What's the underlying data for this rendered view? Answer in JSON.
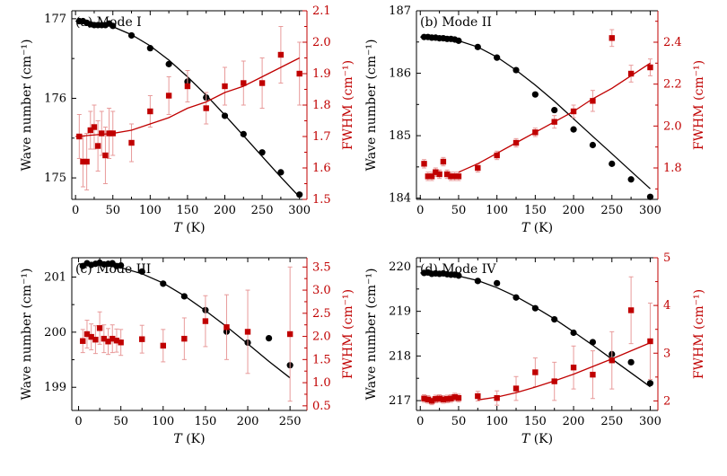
{
  "chart_data": [
    {
      "type": "scatter",
      "title": "(a) Mode I",
      "xlabel_italic": "T",
      "xlabel_unit": " (K)",
      "ylabel": "Wave number (cm⁻¹)",
      "y2label": "FWHM (cm⁻¹)",
      "xlim": [
        -5,
        310
      ],
      "ylim": [
        174.73,
        177.1
      ],
      "y2lim": [
        1.5,
        2.1
      ],
      "xticks": [
        0,
        50,
        100,
        150,
        200,
        250,
        300
      ],
      "yticks": [
        175,
        176,
        177
      ],
      "y2ticks": [
        1.5,
        1.6,
        1.7,
        1.8,
        1.9,
        2.0,
        2.1
      ],
      "series": [
        {
          "name": "Wave number",
          "axis": "left",
          "marker": "circle",
          "color": "#000000",
          "x": [
            5,
            10,
            15,
            20,
            25,
            30,
            35,
            40,
            45,
            50,
            75,
            100,
            125,
            150,
            175,
            200,
            225,
            250,
            275,
            300
          ],
          "y": [
            176.97,
            176.97,
            176.95,
            176.93,
            176.92,
            176.92,
            176.92,
            176.92,
            176.94,
            176.91,
            176.79,
            176.63,
            176.43,
            176.21,
            176.01,
            175.78,
            175.55,
            175.32,
            175.07,
            174.79
          ]
        },
        {
          "name": "Wave number fit",
          "axis": "left",
          "style": "line",
          "color": "#000000",
          "x": [
            0,
            25,
            50,
            75,
            100,
            125,
            150,
            175,
            200,
            225,
            250,
            275,
            300
          ],
          "y": [
            176.97,
            176.95,
            176.9,
            176.8,
            176.66,
            176.48,
            176.27,
            176.04,
            175.79,
            175.53,
            175.27,
            175.01,
            174.76
          ]
        },
        {
          "name": "FWHM",
          "axis": "right",
          "marker": "square",
          "color": "#c00000",
          "x": [
            5,
            10,
            15,
            20,
            25,
            30,
            35,
            40,
            45,
            50,
            75,
            100,
            125,
            150,
            175,
            200,
            225,
            250,
            275,
            300
          ],
          "y": [
            1.7,
            1.62,
            1.62,
            1.72,
            1.73,
            1.67,
            1.71,
            1.64,
            1.71,
            1.71,
            1.68,
            1.78,
            1.83,
            1.86,
            1.79,
            1.86,
            1.87,
            1.87,
            1.96,
            1.9
          ],
          "err": [
            0.07,
            0.08,
            0.09,
            0.06,
            0.07,
            0.08,
            0.07,
            0.09,
            0.08,
            0.07,
            0.06,
            0.05,
            0.06,
            0.05,
            0.05,
            0.06,
            0.07,
            0.08,
            0.09,
            0.1
          ]
        },
        {
          "name": "FWHM fit",
          "axis": "right",
          "style": "line",
          "color": "#c00000",
          "x": [
            0,
            50,
            75,
            100,
            125,
            150,
            175,
            200,
            225,
            250,
            275,
            300
          ],
          "y": [
            1.7,
            1.71,
            1.72,
            1.74,
            1.76,
            1.79,
            1.81,
            1.84,
            1.86,
            1.89,
            1.92,
            1.95
          ]
        }
      ]
    },
    {
      "type": "scatter",
      "title": "(b) Mode II",
      "xlabel_italic": "T",
      "xlabel_unit": " (K)",
      "ylabel": "Wave number (cm⁻¹)",
      "y2label": "FWHM (cm⁻¹)",
      "xlim": [
        -5,
        310
      ],
      "ylim": [
        183.98,
        187.0
      ],
      "y2lim": [
        1.65,
        2.55
      ],
      "xticks": [
        0,
        50,
        100,
        150,
        200,
        250,
        300
      ],
      "yticks": [
        184,
        185,
        186,
        187
      ],
      "y2ticks": [
        1.8,
        2.0,
        2.2,
        2.4
      ],
      "series": [
        {
          "name": "Wave number",
          "axis": "left",
          "marker": "circle",
          "color": "#000000",
          "x": [
            5,
            10,
            15,
            20,
            25,
            30,
            35,
            40,
            45,
            50,
            75,
            100,
            125,
            150,
            175,
            200,
            225,
            250,
            275,
            300
          ],
          "y": [
            186.58,
            186.58,
            186.57,
            186.57,
            186.56,
            186.56,
            186.55,
            186.55,
            186.54,
            186.52,
            186.42,
            186.25,
            186.05,
            185.66,
            185.41,
            185.1,
            184.85,
            184.55,
            184.3,
            184.02
          ]
        },
        {
          "name": "Wave number fit",
          "axis": "left",
          "style": "line",
          "color": "#000000",
          "x": [
            0,
            25,
            50,
            75,
            100,
            125,
            150,
            175,
            200,
            225,
            250,
            275,
            300
          ],
          "y": [
            186.58,
            186.57,
            186.52,
            186.42,
            186.26,
            186.05,
            185.81,
            185.55,
            185.27,
            184.99,
            184.71,
            184.43,
            184.15
          ]
        },
        {
          "name": "FWHM",
          "axis": "right",
          "marker": "square",
          "color": "#c00000",
          "x": [
            5,
            10,
            15,
            20,
            25,
            30,
            35,
            40,
            45,
            50,
            75,
            100,
            125,
            150,
            175,
            200,
            225,
            250,
            275,
            300
          ],
          "y": [
            1.82,
            1.76,
            1.76,
            1.78,
            1.77,
            1.83,
            1.77,
            1.76,
            1.76,
            1.76,
            1.8,
            1.86,
            1.92,
            1.97,
            2.02,
            2.07,
            2.12,
            2.42,
            2.25,
            2.28
          ],
          "err": [
            0.02,
            0.02,
            0.02,
            0.02,
            0.02,
            0.02,
            0.02,
            0.02,
            0.02,
            0.02,
            0.02,
            0.02,
            0.02,
            0.02,
            0.03,
            0.03,
            0.05,
            0.04,
            0.04,
            0.04
          ]
        },
        {
          "name": "FWHM fit",
          "axis": "right",
          "style": "line",
          "color": "#c00000",
          "x": [
            50,
            75,
            100,
            125,
            150,
            175,
            200,
            225,
            250,
            275,
            300
          ],
          "y": [
            1.78,
            1.82,
            1.87,
            1.92,
            1.97,
            2.02,
            2.07,
            2.13,
            2.18,
            2.24,
            2.3
          ]
        }
      ]
    },
    {
      "type": "scatter",
      "title": "(c) Mode III",
      "xlabel_italic": "T",
      "xlabel_unit": " (K)",
      "ylabel": "Wave number (cm⁻¹)",
      "y2label": "FWHM (cm⁻¹)",
      "xlim": [
        -8,
        270
      ],
      "ylim": [
        198.58,
        201.35
      ],
      "y2lim": [
        0.4,
        3.7
      ],
      "xticks": [
        0,
        50,
        100,
        150,
        200,
        250
      ],
      "yticks": [
        199,
        200,
        201
      ],
      "y2ticks": [
        0.5,
        1.0,
        1.5,
        2.0,
        2.5,
        3.0,
        3.5
      ],
      "series": [
        {
          "name": "Wave number",
          "axis": "left",
          "marker": "circle",
          "color": "#000000",
          "x": [
            5,
            10,
            15,
            20,
            25,
            30,
            35,
            40,
            45,
            50,
            75,
            100,
            125,
            150,
            175,
            200,
            225,
            250
          ],
          "y": [
            201.2,
            201.25,
            201.22,
            201.24,
            201.26,
            201.23,
            201.24,
            201.25,
            201.2,
            201.21,
            201.1,
            200.88,
            200.65,
            200.4,
            200.01,
            199.81,
            199.89,
            199.4
          ]
        },
        {
          "name": "Wave number fit",
          "axis": "left",
          "style": "line",
          "color": "#000000",
          "x": [
            0,
            25,
            50,
            75,
            100,
            125,
            150,
            175,
            200,
            225,
            250
          ],
          "y": [
            201.24,
            201.22,
            201.17,
            201.06,
            200.89,
            200.66,
            200.39,
            200.1,
            199.79,
            199.47,
            199.17
          ]
        },
        {
          "name": "FWHM",
          "axis": "right",
          "marker": "square",
          "color": "#c00000",
          "x": [
            5,
            10,
            15,
            20,
            25,
            30,
            35,
            40,
            45,
            50,
            75,
            100,
            125,
            150,
            175,
            200,
            250
          ],
          "y": [
            1.9,
            2.05,
            1.99,
            1.93,
            2.18,
            1.95,
            1.89,
            1.95,
            1.91,
            1.87,
            1.94,
            1.8,
            1.95,
            2.33,
            2.2,
            2.1,
            2.05
          ],
          "err": [
            0.25,
            0.3,
            0.28,
            0.3,
            0.35,
            0.3,
            0.28,
            0.3,
            0.25,
            0.28,
            0.3,
            0.35,
            0.45,
            0.55,
            0.7,
            0.9,
            1.45
          ]
        }
      ]
    },
    {
      "type": "scatter",
      "title": "(d) Mode IV",
      "xlabel_italic": "T",
      "xlabel_unit": " (K)",
      "ylabel": "Wave number (cm⁻¹)",
      "y2label": "FWHM (cm⁻¹)",
      "xlim": [
        -5,
        310
      ],
      "ylim": [
        216.78,
        220.2
      ],
      "y2lim": [
        1.8,
        5.0
      ],
      "xticks": [
        0,
        50,
        100,
        150,
        200,
        250,
        300
      ],
      "yticks": [
        217,
        218,
        219,
        220
      ],
      "y2ticks": [
        2,
        3,
        4,
        5
      ],
      "series": [
        {
          "name": "Wave number",
          "axis": "left",
          "marker": "circle",
          "color": "#000000",
          "x": [
            5,
            10,
            15,
            20,
            25,
            30,
            35,
            40,
            45,
            50,
            75,
            100,
            125,
            150,
            175,
            200,
            225,
            250,
            275,
            300
          ],
          "y": [
            219.86,
            219.87,
            219.84,
            219.85,
            219.84,
            219.85,
            219.83,
            219.82,
            219.82,
            219.8,
            219.68,
            219.63,
            219.31,
            219.07,
            218.82,
            218.52,
            218.31,
            218.04,
            217.86,
            217.39
          ]
        },
        {
          "name": "Wave number fit",
          "axis": "left",
          "style": "line",
          "color": "#000000",
          "x": [
            0,
            25,
            50,
            75,
            100,
            125,
            150,
            175,
            200,
            225,
            250,
            275,
            300
          ],
          "y": [
            219.86,
            219.84,
            219.79,
            219.69,
            219.53,
            219.33,
            219.09,
            218.83,
            218.54,
            218.24,
            217.93,
            217.62,
            217.31
          ]
        },
        {
          "name": "FWHM",
          "axis": "right",
          "marker": "square",
          "color": "#c00000",
          "x": [
            5,
            10,
            15,
            20,
            25,
            30,
            35,
            40,
            45,
            50,
            75,
            100,
            125,
            150,
            175,
            200,
            225,
            250,
            275,
            300
          ],
          "y": [
            2.05,
            2.03,
            2.0,
            2.04,
            2.05,
            2.03,
            2.04,
            2.05,
            2.08,
            2.06,
            2.1,
            2.06,
            2.26,
            2.6,
            2.41,
            2.7,
            2.55,
            2.85,
            3.9,
            3.25
          ],
          "err": [
            0.08,
            0.08,
            0.08,
            0.08,
            0.08,
            0.08,
            0.08,
            0.08,
            0.08,
            0.08,
            0.1,
            0.15,
            0.25,
            0.3,
            0.4,
            0.45,
            0.5,
            0.6,
            0.7,
            0.8
          ]
        },
        {
          "name": "FWHM fit",
          "axis": "right",
          "style": "line",
          "color": "#c00000",
          "x": [
            75,
            100,
            125,
            150,
            175,
            200,
            225,
            250,
            275,
            300
          ],
          "y": [
            2.02,
            2.08,
            2.17,
            2.29,
            2.42,
            2.56,
            2.72,
            2.88,
            3.05,
            3.22
          ]
        }
      ]
    }
  ]
}
